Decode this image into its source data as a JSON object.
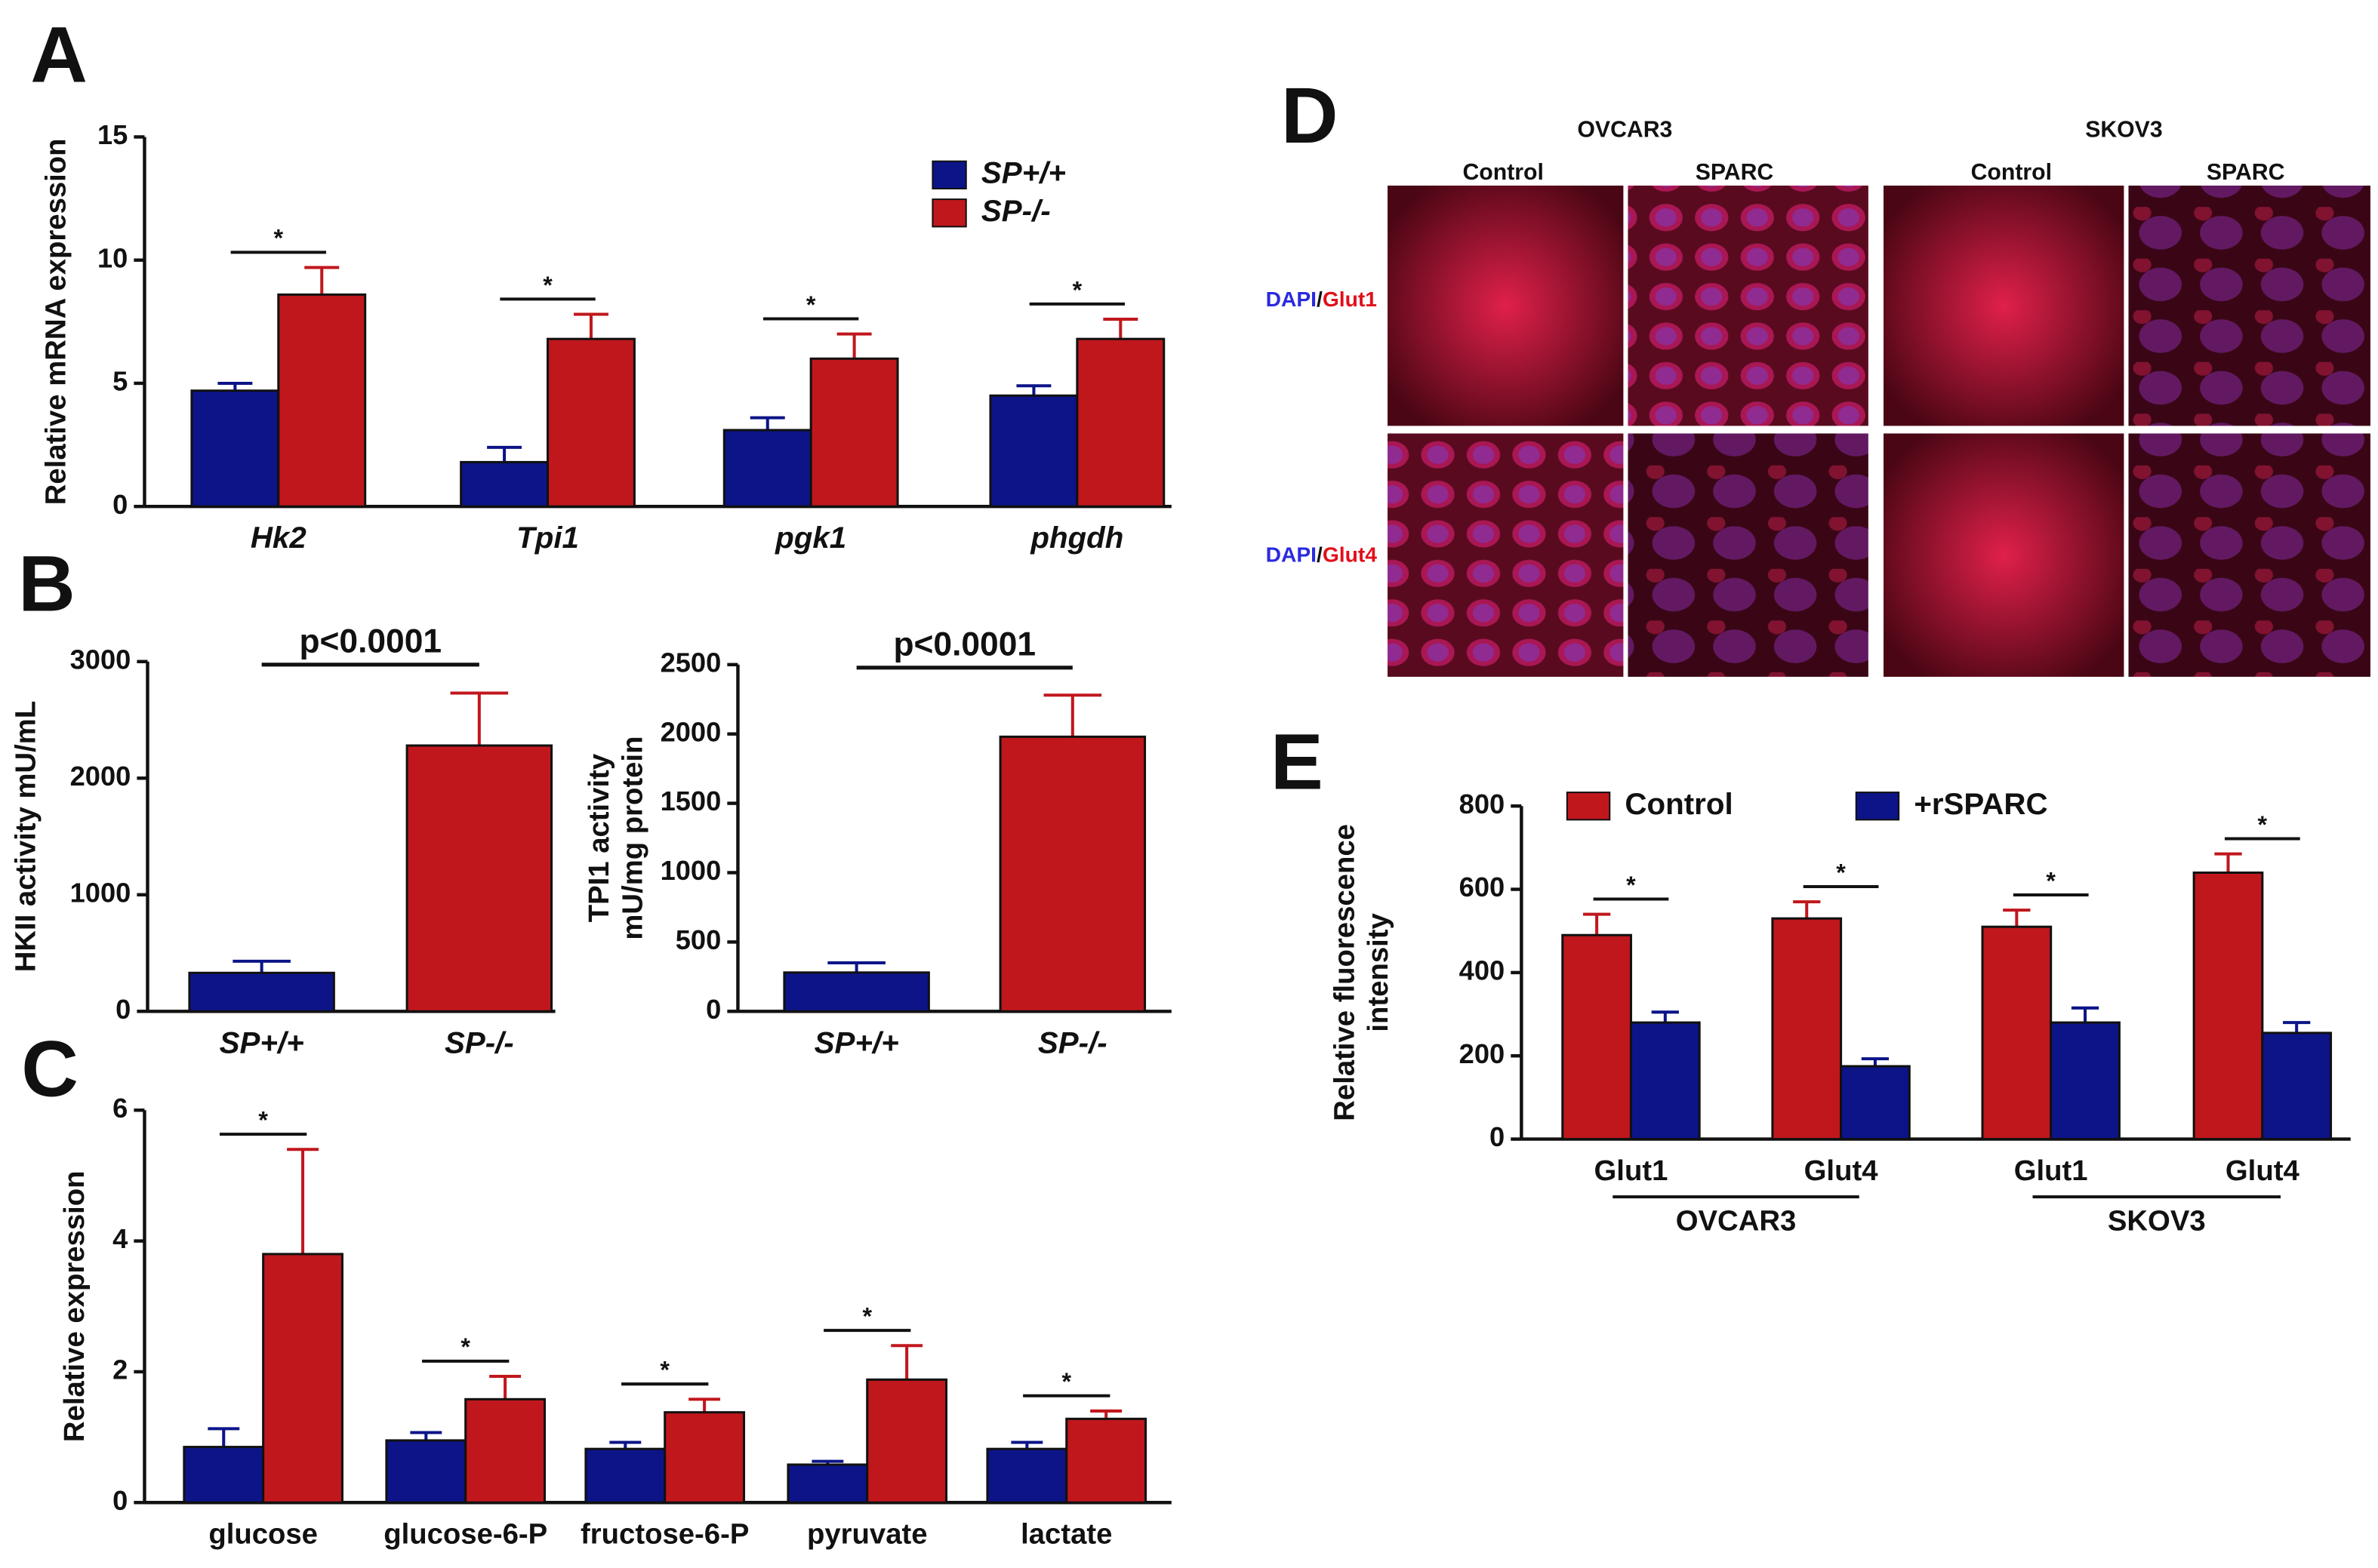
{
  "chart_data": [
    {
      "panel": "A",
      "type": "bar",
      "ylabel": [
        "Relative mRNA expression"
      ],
      "categories": [
        "Hk2",
        "Tpi1",
        "pgk1",
        "phgdh"
      ],
      "series": [
        {
          "name": "SP+/+",
          "color": "#0c1488",
          "values": [
            4.7,
            1.8,
            3.1,
            4.5
          ],
          "errors": [
            0.3,
            0.6,
            0.5,
            0.4
          ]
        },
        {
          "name": "SP-/-",
          "color": "#c0171d",
          "values": [
            8.6,
            6.8,
            6.0,
            6.8
          ],
          "errors": [
            1.1,
            1.0,
            1.0,
            0.8
          ]
        }
      ],
      "annotations": [
        "*",
        "*",
        "*",
        "*"
      ],
      "ylim": [
        0,
        15
      ],
      "yticks": [
        0,
        5,
        10,
        15
      ]
    },
    {
      "panel": "B",
      "type": "bar",
      "ylabel": [
        "HKII activity mU/mL"
      ],
      "categories": [
        "SP+/+",
        "SP-/-"
      ],
      "series": [
        {
          "colors": [
            "#0c1488",
            "#c0171d"
          ],
          "values": [
            330,
            2280
          ],
          "errors": [
            100,
            450
          ]
        }
      ],
      "annotations": [
        "p<0.0001"
      ],
      "ylim": [
        0,
        3000
      ],
      "yticks": [
        0,
        1000,
        2000,
        3000
      ]
    },
    {
      "type": "bar",
      "ylabel": [
        "TPI1 activity",
        "mU/mg protein"
      ],
      "categories": [
        "SP+/+",
        "SP-/-"
      ],
      "series": [
        {
          "colors": [
            "#0c1488",
            "#c0171d"
          ],
          "values": [
            280,
            1980
          ],
          "errors": [
            70,
            300
          ]
        }
      ],
      "annotations": [
        "p<0.0001"
      ],
      "ylim": [
        0,
        2500
      ],
      "yticks": [
        0,
        500,
        1000,
        1500,
        2000,
        2500
      ]
    },
    {
      "panel": "C",
      "type": "bar",
      "ylabel": [
        "Relative expression"
      ],
      "categories": [
        "glucose",
        "glucose-6-P",
        "fructose-6-P",
        "pyruvate",
        "lactate"
      ],
      "series": [
        {
          "color": "#0c1488",
          "values": [
            0.85,
            0.95,
            0.82,
            0.58,
            0.82
          ],
          "errors": [
            0.28,
            0.12,
            0.1,
            0.05,
            0.1
          ]
        },
        {
          "color": "#c0171d",
          "values": [
            3.8,
            1.58,
            1.38,
            1.88,
            1.28
          ],
          "errors": [
            1.6,
            0.35,
            0.2,
            0.52,
            0.12
          ]
        }
      ],
      "annotations": [
        "*",
        "*",
        "*",
        "*",
        "*"
      ],
      "ylim": [
        0,
        6
      ],
      "yticks": [
        0,
        2,
        4,
        6
      ]
    },
    {
      "panel": "E",
      "type": "bar",
      "ylabel": [
        "Relative fluorescence",
        "intensity"
      ],
      "categories": [
        "Glut1",
        "Glut4",
        "Glut1",
        "Glut4"
      ],
      "group_labels": [
        "OVCAR3",
        "SKOV3"
      ],
      "series": [
        {
          "name": "Control",
          "color": "#c0171d",
          "values": [
            490,
            530,
            510,
            640
          ],
          "errors": [
            50,
            40,
            40,
            45
          ]
        },
        {
          "name": "+rSPARC",
          "color": "#0c1488",
          "values": [
            280,
            175,
            280,
            255
          ],
          "errors": [
            25,
            18,
            35,
            25
          ]
        }
      ],
      "annotations": [
        "*",
        "*",
        "*",
        "*"
      ],
      "ylim": [
        0,
        800
      ],
      "yticks": [
        0,
        200,
        400,
        600,
        800
      ]
    }
  ],
  "image_panel": {
    "panel": "D",
    "groups": [
      "OVCAR3",
      "SKOV3"
    ],
    "columns": [
      "Control",
      "SPARC",
      "Control",
      "SPARC"
    ],
    "rows": [
      {
        "stain": "DAPI",
        "sep": "/",
        "target": "Glut1"
      },
      {
        "stain": "DAPI",
        "sep": "/",
        "target": "Glut4"
      }
    ]
  }
}
